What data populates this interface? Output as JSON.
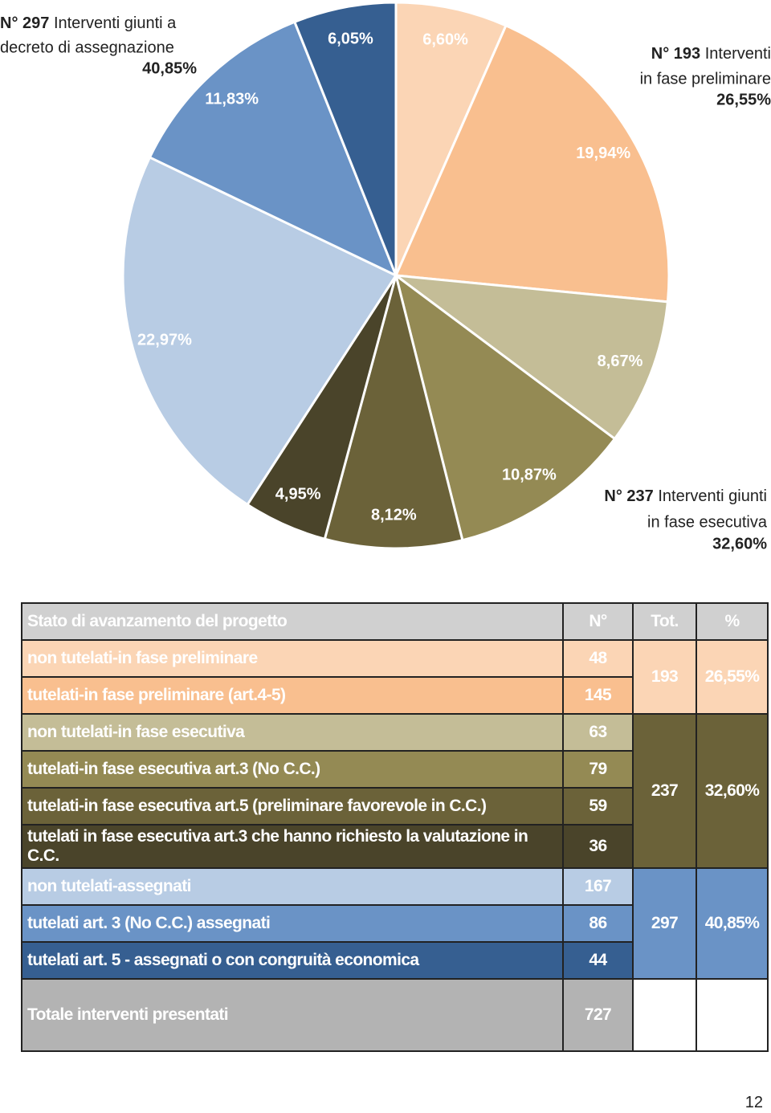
{
  "chart_data": {
    "type": "pie",
    "values": [
      6.6,
      19.94,
      8.67,
      10.87,
      8.12,
      4.95,
      22.97,
      11.83,
      6.05
    ],
    "value_labels": [
      "6,60%",
      "19,94%",
      "8,67%",
      "10,87%",
      "8,12%",
      "4,95%",
      "22,97%",
      "11,83%",
      "6,05%"
    ],
    "colors": [
      "#fbd5b5",
      "#f9bf8f",
      "#c4bd97",
      "#948a54",
      "#6b6239",
      "#4a442a",
      "#b8cce4",
      "#6a93c6",
      "#365f91"
    ],
    "annotations": [
      {
        "count": "N° 297",
        "text": "Interventi giunti a",
        "text2": "decreto di assegnazione",
        "percent": "40,85%"
      },
      {
        "count": "N° 193",
        "text": "Interventi",
        "text2": "in fase preliminare",
        "percent": "26,55%"
      },
      {
        "count": "N° 237",
        "text": "Interventi giunti",
        "text2": "in fase esecutiva",
        "percent": "32,60%"
      }
    ]
  },
  "table": {
    "header": [
      "Stato di avanzamento del progetto",
      "N°",
      "Tot.",
      "%"
    ],
    "groups": [
      {
        "tot": 193,
        "pct": "26,55%",
        "color": "#fbd5b5",
        "rows": [
          {
            "label": "non tutelati-in fase preliminare",
            "n": 48,
            "color": "#fbd5b5"
          },
          {
            "label": "tutelati-in fase preliminare (art.4-5)",
            "n": 145,
            "color": "#f9bf8f"
          }
        ]
      },
      {
        "tot": 237,
        "pct": "32,60%",
        "color": "#6b6239",
        "rows": [
          {
            "label": "non tutelati-in fase esecutiva",
            "n": 63,
            "color": "#c4bd97"
          },
          {
            "label": "tutelati-in fase esecutiva art.3 (No C.C.)",
            "n": 79,
            "color": "#948a54"
          },
          {
            "label": "tutelati-in fase esecutiva art.5 (preliminare favorevole in C.C.)",
            "n": 59,
            "color": "#6b6239"
          },
          {
            "label": "tutelati in fase esecutiva art.3 che hanno richiesto la valutazione in C.C.",
            "n": 36,
            "color": "#4a442a"
          }
        ]
      },
      {
        "tot": 297,
        "pct": "40,85%",
        "color": "#6a93c6",
        "rows": [
          {
            "label": "non tutelati-assegnati",
            "n": 167,
            "color": "#b8cce4"
          },
          {
            "label": "tutelati art. 3 (No C.C.) assegnati",
            "n": 86,
            "color": "#6a93c6"
          },
          {
            "label": "tutelati art. 5 - assegnati o con congruità economica",
            "n": 44,
            "color": "#365f91"
          }
        ]
      }
    ],
    "total": {
      "label": "Totale interventi presentati",
      "n": 727
    }
  },
  "page_number": "12"
}
